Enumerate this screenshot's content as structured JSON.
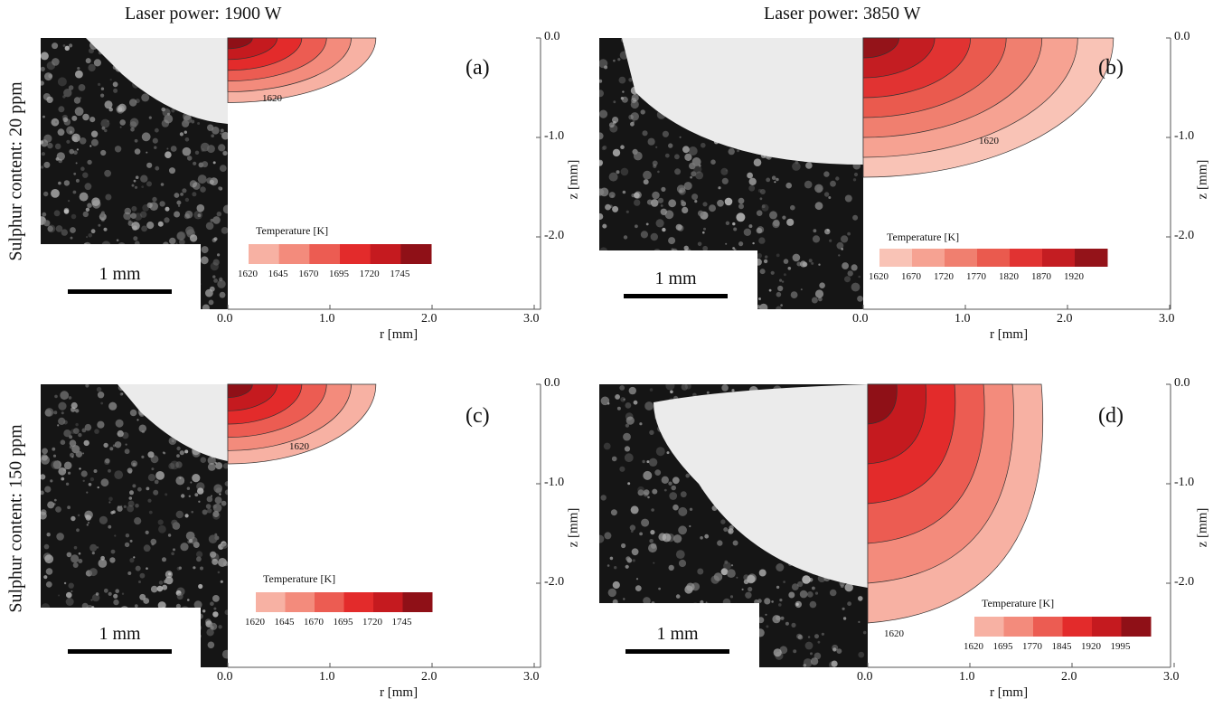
{
  "figure": {
    "columns": [
      {
        "label": "Laser power: 1900 W"
      },
      {
        "label": "Laser power: 3850 W"
      }
    ],
    "rows": [
      {
        "label": "Sulphur content: 20 ppm"
      },
      {
        "label": "Sulphur content: 150 ppm"
      }
    ],
    "scale_bar_label": "1 mm",
    "axis": {
      "r_title": "r [mm]",
      "z_title": "z [mm]",
      "r_ticks": [
        "0.0",
        "1.0",
        "2.0",
        "3.0"
      ],
      "z_ticks": [
        "0.0",
        "-1.0",
        "-2.0"
      ]
    },
    "legend_title": "Temperature [K]",
    "contour_label": "1620",
    "panels": [
      {
        "letter": "(a)",
        "legend_ticks": [
          "1620",
          "1645",
          "1670",
          "1695",
          "1720",
          "1745"
        ],
        "colors": [
          "#f7b1a3",
          "#f38b7c",
          "#ec5c52",
          "#e32b2b",
          "#c51a1f",
          "#8f1017"
        ],
        "pool_extent_mm": {
          "r": 1.45,
          "z": -0.65
        }
      },
      {
        "letter": "(b)",
        "legend_ticks": [
          "1620",
          "1670",
          "1720",
          "1770",
          "1820",
          "1870",
          "1920"
        ],
        "colors": [
          "#f9c3b6",
          "#f6a292",
          "#f07f6f",
          "#ea5a4e",
          "#e13332",
          "#c41d22",
          "#941319"
        ],
        "pool_extent_mm": {
          "r": 2.45,
          "z": -1.4
        }
      },
      {
        "letter": "(c)",
        "legend_ticks": [
          "1620",
          "1645",
          "1670",
          "1695",
          "1720",
          "1745"
        ],
        "colors": [
          "#f7b1a3",
          "#f38b7c",
          "#ec5c52",
          "#e32b2b",
          "#c51a1f",
          "#8f1017"
        ],
        "pool_extent_mm": {
          "r": 1.45,
          "z": -0.8
        }
      },
      {
        "letter": "(d)",
        "legend_ticks": [
          "1620",
          "1695",
          "1770",
          "1845",
          "1920",
          "1995"
        ],
        "colors": [
          "#f7b1a3",
          "#f38b7c",
          "#ec5c52",
          "#e32b2b",
          "#c51a1f",
          "#8f1017"
        ],
        "pool_extent_mm": {
          "r": 1.7,
          "z": -2.4
        }
      }
    ]
  }
}
